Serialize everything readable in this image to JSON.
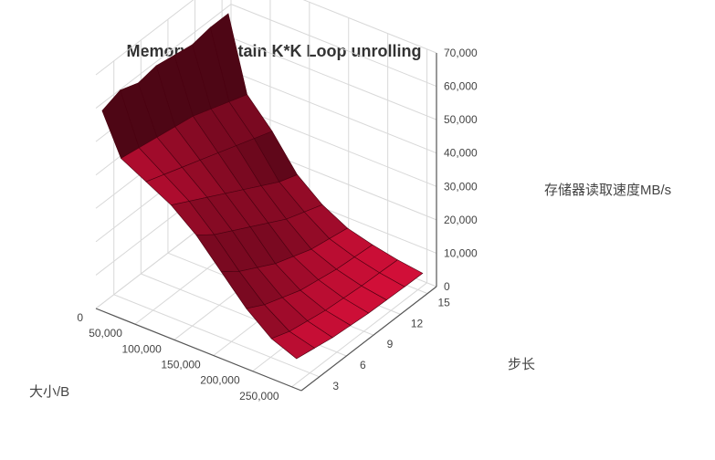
{
  "chart_data": {
    "type": "surface3d",
    "title": "Memory Mountain K*K Loop unrolling",
    "x_axis": {
      "label": "大小/B",
      "ticks": [
        "0",
        "50,000",
        "100,000",
        "150,000",
        "200,000",
        "250,000"
      ],
      "range": [
        0,
        262144
      ]
    },
    "y_axis": {
      "label": "步长",
      "ticks": [
        "3",
        "6",
        "9",
        "12",
        "15"
      ],
      "range": [
        1,
        16
      ]
    },
    "z_axis": {
      "label": "存储器读取速度MB/s",
      "ticks": [
        "0",
        "10,000",
        "20,000",
        "30,000",
        "40,000",
        "50,000",
        "60,000",
        "70,000"
      ],
      "range": [
        0,
        70000
      ]
    },
    "sizes": [
      8000,
      32000,
      64000,
      96000,
      128000,
      160000,
      192000,
      224000,
      256000
    ],
    "strides": [
      1,
      3,
      5,
      7,
      9,
      11,
      13,
      15
    ],
    "z_values": [
      [
        60000,
        62000,
        60000,
        61000,
        60000,
        59000,
        60000,
        60000
      ],
      [
        48000,
        47000,
        46000,
        45000,
        44000,
        42000,
        40000,
        38000
      ],
      [
        44000,
        42000,
        40000,
        38000,
        36000,
        34000,
        32000,
        30000
      ],
      [
        40000,
        37000,
        34000,
        31000,
        28000,
        25000,
        22000,
        20000
      ],
      [
        34000,
        30000,
        27000,
        24000,
        21000,
        18000,
        16000,
        14000
      ],
      [
        26000,
        22000,
        19000,
        16000,
        14000,
        12000,
        11000,
        10000
      ],
      [
        18000,
        15000,
        13000,
        11000,
        10000,
        9000,
        8500,
        8000
      ],
      [
        12000,
        10000,
        9000,
        8000,
        7500,
        7000,
        6800,
        6500
      ],
      [
        9000,
        8000,
        7000,
        6500,
        6000,
        5800,
        5600,
        5500
      ]
    ],
    "surface_color": "#e0103c",
    "grid": true
  }
}
